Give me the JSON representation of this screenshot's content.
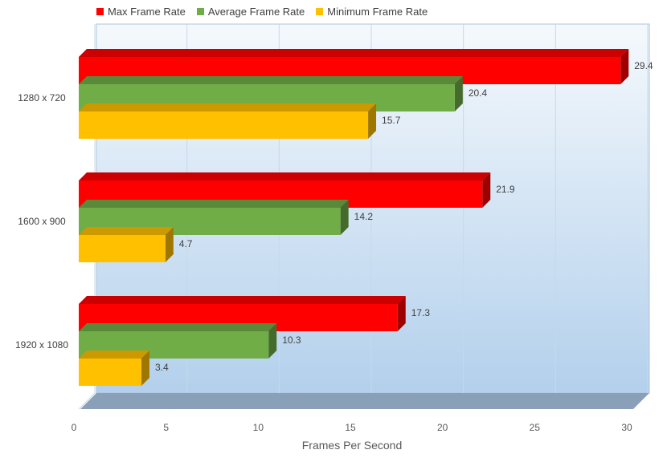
{
  "chart_data": {
    "type": "bar",
    "orientation": "horizontal",
    "categories": [
      "1280 x 720",
      "1600 x 900",
      "1920 x 1080"
    ],
    "series": [
      {
        "name": "Max Frame Rate",
        "color": "#ff0000",
        "values": [
          29.4,
          21.9,
          17.3
        ]
      },
      {
        "name": "Average Frame Rate",
        "color": "#70ad47",
        "values": [
          20.4,
          14.2,
          10.3
        ]
      },
      {
        "name": "Minimum Frame Rate",
        "color": "#ffc000",
        "values": [
          15.7,
          4.7,
          3.4
        ]
      }
    ],
    "xlabel": "Frames Per Second",
    "ylabel": "",
    "xlim": [
      0,
      30
    ],
    "xticks": [
      "0",
      "5",
      "10",
      "15",
      "20",
      "25",
      "30"
    ],
    "grid": true,
    "legend_position": "top-left",
    "style": "3d"
  }
}
